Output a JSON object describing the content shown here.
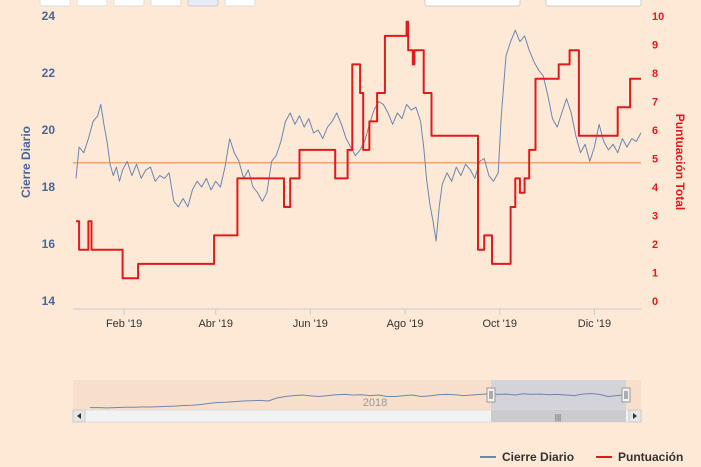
{
  "chart_data": {
    "type": "line",
    "y_left": {
      "label": "Cierre Diario",
      "range": [
        14,
        24
      ],
      "ticks": [
        14,
        16,
        18,
        20,
        22,
        24
      ]
    },
    "y_right": {
      "label": "Puntuación Total",
      "range": [
        0,
        10
      ],
      "ticks": [
        0,
        1,
        2,
        3,
        4,
        5,
        6,
        7,
        8,
        9,
        10
      ]
    },
    "x_axis": {
      "range": [
        "2019-01-01",
        "2019-12-31"
      ],
      "ticks": [
        {
          "date": "2019-02-01",
          "label": "Feb '19"
        },
        {
          "date": "2019-04-01",
          "label": "Abr '19"
        },
        {
          "date": "2019-06-01",
          "label": "Jun '19"
        },
        {
          "date": "2019-08-01",
          "label": "Ago '19"
        },
        {
          "date": "2019-10-01",
          "label": "Oct '19"
        },
        {
          "date": "2019-12-01",
          "label": "Dic '19"
        }
      ]
    },
    "plot_line_left_value": 18.85,
    "series": [
      {
        "name": "Cierre Diario",
        "axis": "left",
        "color": "#6d86b0",
        "style": "line",
        "points": [
          [
            "2019-01-01",
            18.3
          ],
          [
            "2019-01-03",
            19.4
          ],
          [
            "2019-01-06",
            19.2
          ],
          [
            "2019-01-09",
            19.7
          ],
          [
            "2019-01-12",
            20.3
          ],
          [
            "2019-01-15",
            20.5
          ],
          [
            "2019-01-17",
            20.9
          ],
          [
            "2019-01-19",
            20.2
          ],
          [
            "2019-01-21",
            19.6
          ],
          [
            "2019-01-23",
            18.8
          ],
          [
            "2019-01-25",
            18.4
          ],
          [
            "2019-01-27",
            18.7
          ],
          [
            "2019-01-29",
            18.2
          ],
          [
            "2019-01-31",
            18.6
          ],
          [
            "2019-02-03",
            18.9
          ],
          [
            "2019-02-06",
            18.4
          ],
          [
            "2019-02-09",
            18.8
          ],
          [
            "2019-02-12",
            18.3
          ],
          [
            "2019-02-15",
            18.6
          ],
          [
            "2019-02-18",
            18.7
          ],
          [
            "2019-02-21",
            18.2
          ],
          [
            "2019-02-24",
            18.4
          ],
          [
            "2019-02-27",
            18.3
          ],
          [
            "2019-03-02",
            18.5
          ],
          [
            "2019-03-05",
            17.5
          ],
          [
            "2019-03-08",
            17.3
          ],
          [
            "2019-03-11",
            17.6
          ],
          [
            "2019-03-14",
            17.3
          ],
          [
            "2019-03-17",
            17.9
          ],
          [
            "2019-03-20",
            18.2
          ],
          [
            "2019-03-23",
            18.0
          ],
          [
            "2019-03-26",
            18.3
          ],
          [
            "2019-03-29",
            17.9
          ],
          [
            "2019-04-01",
            18.2
          ],
          [
            "2019-04-04",
            18.0
          ],
          [
            "2019-04-07",
            18.7
          ],
          [
            "2019-04-10",
            19.7
          ],
          [
            "2019-04-13",
            19.2
          ],
          [
            "2019-04-16",
            18.9
          ],
          [
            "2019-04-19",
            18.3
          ],
          [
            "2019-04-22",
            18.6
          ],
          [
            "2019-04-25",
            18.0
          ],
          [
            "2019-04-28",
            17.8
          ],
          [
            "2019-05-01",
            17.5
          ],
          [
            "2019-05-04",
            17.8
          ],
          [
            "2019-05-07",
            18.9
          ],
          [
            "2019-05-10",
            19.1
          ],
          [
            "2019-05-13",
            19.6
          ],
          [
            "2019-05-16",
            20.3
          ],
          [
            "2019-05-19",
            20.6
          ],
          [
            "2019-05-22",
            20.2
          ],
          [
            "2019-05-25",
            20.5
          ],
          [
            "2019-05-28",
            20.1
          ],
          [
            "2019-05-31",
            20.4
          ],
          [
            "2019-06-03",
            19.9
          ],
          [
            "2019-06-06",
            20.0
          ],
          [
            "2019-06-09",
            19.7
          ],
          [
            "2019-06-12",
            20.1
          ],
          [
            "2019-06-15",
            20.3
          ],
          [
            "2019-06-18",
            20.6
          ],
          [
            "2019-06-21",
            20.2
          ],
          [
            "2019-06-24",
            19.7
          ],
          [
            "2019-06-27",
            19.4
          ],
          [
            "2019-06-30",
            19.1
          ],
          [
            "2019-07-03",
            19.3
          ],
          [
            "2019-07-06",
            19.6
          ],
          [
            "2019-07-09",
            20.2
          ],
          [
            "2019-07-12",
            20.7
          ],
          [
            "2019-07-15",
            21.0
          ],
          [
            "2019-07-18",
            20.9
          ],
          [
            "2019-07-21",
            20.6
          ],
          [
            "2019-07-24",
            20.2
          ],
          [
            "2019-07-27",
            20.6
          ],
          [
            "2019-07-30",
            20.4
          ],
          [
            "2019-08-02",
            20.9
          ],
          [
            "2019-08-05",
            20.7
          ],
          [
            "2019-08-08",
            20.8
          ],
          [
            "2019-08-11",
            20.3
          ],
          [
            "2019-08-13",
            19.4
          ],
          [
            "2019-08-15",
            18.2
          ],
          [
            "2019-08-17",
            17.4
          ],
          [
            "2019-08-19",
            16.8
          ],
          [
            "2019-08-21",
            16.1
          ],
          [
            "2019-08-23",
            17.3
          ],
          [
            "2019-08-25",
            18.1
          ],
          [
            "2019-08-28",
            18.5
          ],
          [
            "2019-08-31",
            18.2
          ],
          [
            "2019-09-03",
            18.7
          ],
          [
            "2019-09-06",
            18.4
          ],
          [
            "2019-09-09",
            18.8
          ],
          [
            "2019-09-12",
            18.6
          ],
          [
            "2019-09-15",
            18.3
          ],
          [
            "2019-09-18",
            18.9
          ],
          [
            "2019-09-21",
            19.0
          ],
          [
            "2019-09-24",
            18.4
          ],
          [
            "2019-09-27",
            18.2
          ],
          [
            "2019-09-30",
            18.5
          ],
          [
            "2019-10-02",
            20.5
          ],
          [
            "2019-10-05",
            22.6
          ],
          [
            "2019-10-08",
            23.1
          ],
          [
            "2019-10-11",
            23.5
          ],
          [
            "2019-10-14",
            23.1
          ],
          [
            "2019-10-17",
            23.3
          ],
          [
            "2019-10-20",
            22.8
          ],
          [
            "2019-10-23",
            22.4
          ],
          [
            "2019-10-26",
            22.1
          ],
          [
            "2019-10-29",
            21.9
          ],
          [
            "2019-11-01",
            21.2
          ],
          [
            "2019-11-04",
            20.4
          ],
          [
            "2019-11-07",
            20.1
          ],
          [
            "2019-11-10",
            20.6
          ],
          [
            "2019-11-13",
            21.1
          ],
          [
            "2019-11-16",
            20.6
          ],
          [
            "2019-11-19",
            19.8
          ],
          [
            "2019-11-22",
            19.2
          ],
          [
            "2019-11-25",
            19.5
          ],
          [
            "2019-11-28",
            18.9
          ],
          [
            "2019-12-01",
            19.4
          ],
          [
            "2019-12-04",
            20.2
          ],
          [
            "2019-12-07",
            19.6
          ],
          [
            "2019-12-10",
            19.3
          ],
          [
            "2019-12-13",
            19.5
          ],
          [
            "2019-12-16",
            19.2
          ],
          [
            "2019-12-19",
            19.7
          ],
          [
            "2019-12-22",
            19.4
          ],
          [
            "2019-12-25",
            19.7
          ],
          [
            "2019-12-28",
            19.6
          ],
          [
            "2019-12-31",
            19.9
          ]
        ]
      },
      {
        "name": "Puntuación",
        "axis": "right",
        "color": "#e01b1b",
        "style": "step",
        "points": [
          [
            "2019-01-01",
            2.8
          ],
          [
            "2019-01-03",
            1.8
          ],
          [
            "2019-01-09",
            2.8
          ],
          [
            "2019-01-11",
            1.8
          ],
          [
            "2019-01-31",
            0.8
          ],
          [
            "2019-02-10",
            1.3
          ],
          [
            "2019-03-31",
            2.3
          ],
          [
            "2019-04-15",
            4.3
          ],
          [
            "2019-05-15",
            3.3
          ],
          [
            "2019-05-19",
            4.3
          ],
          [
            "2019-05-25",
            5.3
          ],
          [
            "2019-06-17",
            4.3
          ],
          [
            "2019-06-25",
            5.3
          ],
          [
            "2019-06-28",
            8.3
          ],
          [
            "2019-07-03",
            7.3
          ],
          [
            "2019-07-05",
            5.3
          ],
          [
            "2019-07-09",
            6.3
          ],
          [
            "2019-07-14",
            7.3
          ],
          [
            "2019-07-19",
            9.3
          ],
          [
            "2019-07-29",
            9.3
          ],
          [
            "2019-08-02",
            9.8
          ],
          [
            "2019-08-03",
            8.8
          ],
          [
            "2019-08-06",
            8.3
          ],
          [
            "2019-08-07",
            8.8
          ],
          [
            "2019-08-13",
            7.3
          ],
          [
            "2019-08-18",
            5.8
          ],
          [
            "2019-09-17",
            1.8
          ],
          [
            "2019-09-21",
            2.3
          ],
          [
            "2019-09-26",
            1.3
          ],
          [
            "2019-10-08",
            3.3
          ],
          [
            "2019-10-11",
            4.3
          ],
          [
            "2019-10-14",
            3.8
          ],
          [
            "2019-10-17",
            4.3
          ],
          [
            "2019-10-20",
            5.3
          ],
          [
            "2019-10-24",
            7.8
          ],
          [
            "2019-11-08",
            8.3
          ],
          [
            "2019-11-15",
            8.8
          ],
          [
            "2019-11-21",
            5.8
          ],
          [
            "2019-12-12",
            5.8
          ],
          [
            "2019-12-16",
            6.8
          ],
          [
            "2019-12-24",
            7.8
          ],
          [
            "2019-12-31",
            7.8
          ]
        ]
      }
    ],
    "navigator": {
      "label": "2018",
      "series_y": [
        0.92,
        0.92,
        0.93,
        0.92,
        0.91,
        0.91,
        0.9,
        0.9,
        0.89,
        0.88,
        0.87,
        0.85,
        0.84,
        0.82,
        0.78,
        0.75,
        0.74,
        0.72,
        0.7,
        0.69,
        0.68,
        0.7,
        0.6,
        0.55,
        0.52,
        0.5,
        0.53,
        0.55,
        0.52,
        0.49,
        0.48,
        0.5,
        0.49,
        0.52,
        0.5,
        0.55,
        0.55,
        0.52,
        0.5,
        0.55,
        0.53,
        0.49,
        0.48,
        0.49,
        0.52,
        0.5,
        0.48,
        0.46,
        0.48,
        0.47,
        0.5,
        0.46,
        0.48,
        0.47,
        0.49,
        0.48,
        0.5,
        0.52,
        0.47,
        0.45,
        0.48,
        0.55,
        0.52,
        0.5
      ]
    },
    "legend": {
      "placement": "bottom-right",
      "items": [
        "Cierre Diario",
        "Puntuación"
      ]
    }
  }
}
